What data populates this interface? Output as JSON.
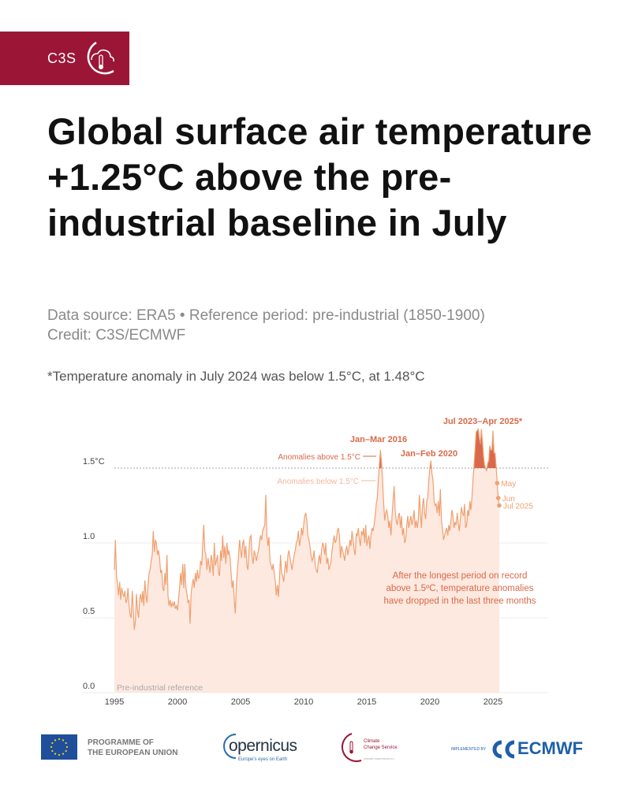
{
  "header": {
    "brand": "C3S"
  },
  "title": "Global surface air temperature +1.25°C above the pre-industrial baseline in July",
  "subtitle": {
    "source": "Data source: ERA5 • Reference period: pre-industrial (1850-1900)",
    "credit": "Credit: C3S/ECMWF"
  },
  "note": "*Temperature anomaly in July 2024 was below 1.5°C, at 1.48°C",
  "chart_data": {
    "type": "area",
    "title": "",
    "xlabel": "",
    "ylabel": "",
    "x_start": "1995-01",
    "x_frequency": "monthly",
    "xlim": [
      1995,
      2029
    ],
    "ylim": [
      0.0,
      1.8
    ],
    "x_ticks": [
      "1995",
      "2000",
      "2005",
      "2010",
      "2015",
      "2020",
      "2025"
    ],
    "x_tick_values": [
      1995,
      2000,
      2005,
      2010,
      2015,
      2020,
      2025
    ],
    "y_ticks": [
      "0.0",
      "0.5",
      "1.0",
      "1.5°C"
    ],
    "y_tick_values": [
      0,
      0.5,
      1.0,
      1.5
    ],
    "threshold": 1.5,
    "grid": true,
    "colors": {
      "line": "#f0a070",
      "fill": "#fde9e0",
      "above": "#d9694a",
      "annotation": "#d9694a",
      "grid": "#e6e6e6"
    },
    "values": [
      0.82,
      1.02,
      0.78,
      0.72,
      0.65,
      0.74,
      0.62,
      0.7,
      0.66,
      0.64,
      0.68,
      0.6,
      0.62,
      0.7,
      0.58,
      0.52,
      0.5,
      0.68,
      0.55,
      0.42,
      0.48,
      0.66,
      0.55,
      0.5,
      0.62,
      0.66,
      0.6,
      0.68,
      0.58,
      0.75,
      0.65,
      0.6,
      0.72,
      0.8,
      0.82,
      0.88,
      0.92,
      1.08,
      0.94,
      1.02,
      1.0,
      0.92,
      0.95,
      0.9,
      0.8,
      0.82,
      0.7,
      0.68,
      0.8,
      0.72,
      0.92,
      0.65,
      0.58,
      0.62,
      0.57,
      0.6,
      0.58,
      0.61,
      0.56,
      0.58,
      0.55,
      0.62,
      0.7,
      0.8,
      0.72,
      0.86,
      0.7,
      0.86,
      0.7,
      0.66,
      0.6,
      0.62,
      0.46,
      0.66,
      0.72,
      0.76,
      0.7,
      0.8,
      0.74,
      0.82,
      0.76,
      0.78,
      0.88,
      0.85,
      0.98,
      1.12,
      0.95,
      0.92,
      0.82,
      0.9,
      0.85,
      0.8,
      0.92,
      0.88,
      0.78,
      1.0,
      0.85,
      0.88,
      0.92,
      0.8,
      0.78,
      0.95,
      0.88,
      1.05,
      0.9,
      0.98,
      0.86,
      1.0,
      0.92,
      0.95,
      0.9,
      0.8,
      0.7,
      0.75,
      0.62,
      0.53,
      0.72,
      0.82,
      0.9,
      1.02,
      0.95,
      0.9,
      1.0,
      1.02,
      0.9,
      0.98,
      0.85,
      0.82,
      0.95,
      1.04,
      1.05,
      0.9,
      0.86,
      0.95,
      0.92,
      0.88,
      0.92,
      0.95,
      1.0,
      1.05,
      1.02,
      1.08,
      1.1,
      1.12,
      1.32,
      1.05,
      0.98,
      1.04,
      0.88,
      0.85,
      0.82,
      0.86,
      0.8,
      0.75,
      0.65,
      0.72,
      0.64,
      0.75,
      0.92,
      0.8,
      0.78,
      0.74,
      0.82,
      0.88,
      0.8,
      0.92,
      0.95,
      0.9,
      0.86,
      0.82,
      0.88,
      0.92,
      0.95,
      1.0,
      1.02,
      1.08,
      0.98,
      1.02,
      1.1,
      1.05,
      1.12,
      1.18,
      1.2,
      1.15,
      1.05,
      1.02,
      0.98,
      0.92,
      0.88,
      0.9,
      0.95,
      0.85,
      0.82,
      0.8,
      0.88,
      0.92,
      0.86,
      0.95,
      1.0,
      0.98,
      0.92,
      1.0,
      0.86,
      0.9,
      0.82,
      0.84,
      0.88,
      0.95,
      1.0,
      1.05,
      1.0,
      1.02,
      1.08,
      1.1,
      1.05,
      0.9,
      0.98,
      0.95,
      0.92,
      0.88,
      0.95,
      0.98,
      0.92,
      0.96,
      1.02,
      0.98,
      1.08,
      1.02,
      0.95,
      0.92,
      1.06,
      1.05,
      1.1,
      1.02,
      0.98,
      1.08,
      1.05,
      1.1,
      1.0,
      1.12,
      0.98,
      1.02,
      1.05,
      0.96,
      1.05,
      1.1,
      1.08,
      1.12,
      1.18,
      1.26,
      1.3,
      1.42,
      1.52,
      1.62,
      1.54,
      1.42,
      1.28,
      1.15,
      1.2,
      1.22,
      1.18,
      1.1,
      1.15,
      1.05,
      1.18,
      1.28,
      1.38,
      1.22,
      1.15,
      1.12,
      1.18,
      1.2,
      1.1,
      1.18,
      1.05,
      1.1,
      1.0,
      1.02,
      1.12,
      1.18,
      1.1,
      1.15,
      1.18,
      1.12,
      1.16,
      1.22,
      1.1,
      1.15,
      1.1,
      1.15,
      1.32,
      1.2,
      1.1,
      1.25,
      1.3,
      1.2,
      1.16,
      1.28,
      1.3,
      1.42,
      1.5,
      1.55,
      1.46,
      1.42,
      1.28,
      1.25,
      1.26,
      1.2,
      1.28,
      1.18,
      1.36,
      1.15,
      1.1,
      1.02,
      1.05,
      1.08,
      1.1,
      1.05,
      1.12,
      1.08,
      1.15,
      1.22,
      1.18,
      1.1,
      1.14,
      1.12,
      1.2,
      1.13,
      1.08,
      1.16,
      1.24,
      1.2,
      1.18,
      1.26,
      1.1,
      1.12,
      1.22,
      1.18,
      1.28,
      1.22,
      1.3,
      1.42,
      1.52,
      1.62,
      1.74,
      1.75,
      1.76,
      1.7,
      1.66,
      1.76,
      1.68,
      1.58,
      1.52,
      1.5,
      1.48,
      1.53,
      1.55,
      1.65,
      1.62,
      1.62,
      1.75,
      1.6,
      1.6,
      1.51,
      1.4,
      1.3,
      1.25
    ],
    "highlighted_points": [
      {
        "label": "May",
        "value": 1.4
      },
      {
        "label": "Jun",
        "value": 1.3
      },
      {
        "label": "Jul 2025",
        "value": 1.25
      }
    ],
    "annotations": {
      "period_2023": "Jul 2023–Apr 2025*",
      "period_2016": "Jan–Mar 2016",
      "period_2020": "Jan–Feb 2020",
      "legend_above": "Anomalies above 1.5°C",
      "legend_below": "Anomalies below 1.5°C",
      "callout": [
        "After the longest period on record",
        "above 1.5ºC, temperature anomalies",
        "have dropped in the last three months"
      ],
      "baseline": "Pre-industrial reference"
    }
  },
  "footer": {
    "eu": [
      "PROGRAMME OF",
      "THE EUROPEAN UNION"
    ],
    "copernicus": "opernicus",
    "copernicus_tagline": "Europe's eyes on Earth",
    "ccs": [
      "Climate",
      "Change Service"
    ],
    "ccs_url": "climate.copernicus.eu",
    "implemented_by": "IMPLEMENTED BY",
    "ecmwf": "ECMWF"
  }
}
